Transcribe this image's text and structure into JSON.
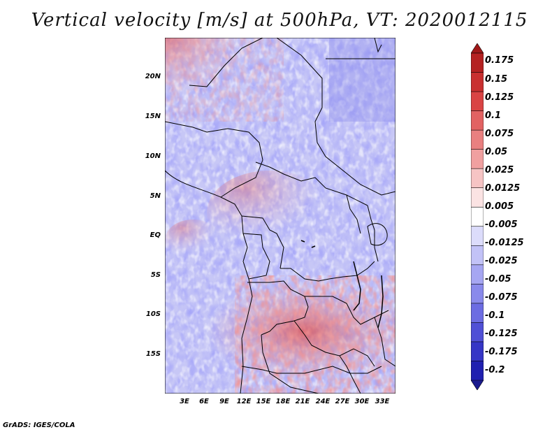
{
  "title": "Vertical velocity [m/s] at 500hPa, VT: 2020012115",
  "credit": "GrADS: IGES/COLA",
  "map": {
    "lat_ticks": [
      "20N",
      "15N",
      "10N",
      "5N",
      "EQ",
      "5S",
      "10S",
      "15S"
    ],
    "lon_ticks": [
      "3E",
      "6E",
      "9E",
      "12E",
      "15E",
      "18E",
      "21E",
      "24E",
      "27E",
      "30E",
      "33E"
    ]
  },
  "colorbar": {
    "labels": [
      "0.175",
      "0.15",
      "0.125",
      "0.1",
      "0.075",
      "0.05",
      "0.025",
      "0.0125",
      "0.005",
      "-0.005",
      "-0.0125",
      "-0.025",
      "-0.05",
      "-0.075",
      "-0.1",
      "-0.125",
      "-0.175",
      "-0.2"
    ],
    "colors": [
      "#a01818",
      "#b52222",
      "#c93030",
      "#d94444",
      "#e26262",
      "#e98080",
      "#f0a0a0",
      "#f6c4c4",
      "#fbe3e3",
      "#ffffff",
      "#dcdcfb",
      "#c2c2f7",
      "#a6a6f2",
      "#8a8aeb",
      "#6c6ce2",
      "#5050d6",
      "#3636c6",
      "#2020b0",
      "#1a1a8e"
    ]
  }
}
